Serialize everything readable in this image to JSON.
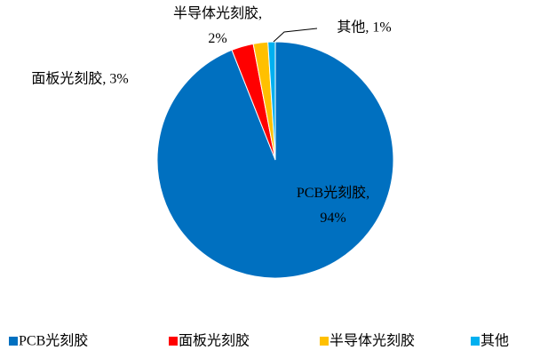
{
  "chart_data": {
    "type": "pie",
    "categories": [
      "PCB光刻胶",
      "面板光刻胶",
      "半导体光刻胶",
      "其他"
    ],
    "values": [
      94,
      3,
      2,
      1
    ],
    "value_labels": [
      "PCB光刻胶, 94%",
      "面板光刻胶, 3%",
      "半导体光刻胶, 2%",
      "其他, 1%"
    ],
    "colors": [
      "#0070c0",
      "#ff0000",
      "#ffc000",
      "#00b0f0"
    ],
    "legend": "bottom"
  }
}
